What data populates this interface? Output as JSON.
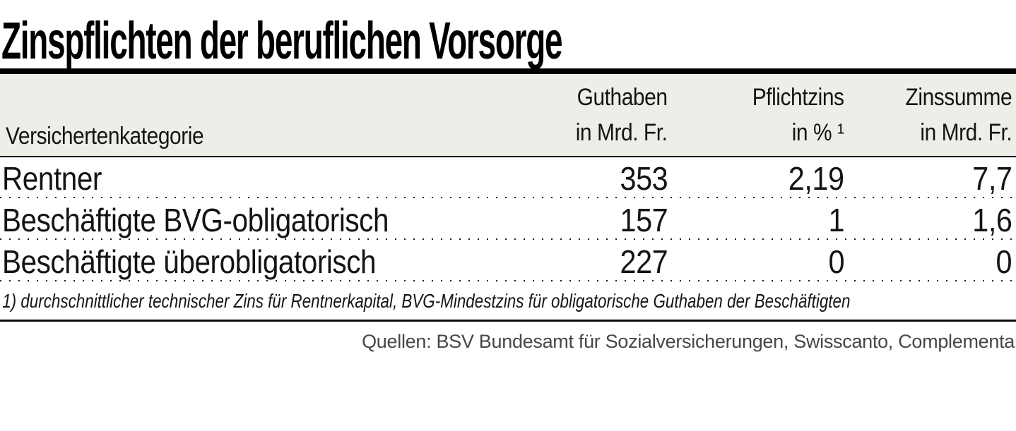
{
  "title": "Zinspflichten der beruflichen Vorsorge",
  "table": {
    "header": {
      "category_label": "Versichertenkategorie",
      "col_guthaben_line1": "Guthaben",
      "col_guthaben_line2": "in Mrd. Fr.",
      "col_pflichtzins_line1": "Pflichtzins",
      "col_pflichtzins_line2": "in % ¹",
      "col_zinssumme_line1": "Zinssumme",
      "col_zinssumme_line2": "in Mrd. Fr."
    },
    "rows": [
      {
        "category": "Rentner",
        "guthaben": "353",
        "pflichtzins": "2,19",
        "zinssumme": "7,7"
      },
      {
        "category": "Beschäftigte BVG-obligatorisch",
        "guthaben": "157",
        "pflichtzins": "1",
        "zinssumme": "1,6"
      },
      {
        "category": "Beschäftigte überobligatorisch",
        "guthaben": "227",
        "pflichtzins": "0",
        "zinssumme": "0"
      }
    ]
  },
  "footnote": "1) durchschnittlicher technischer Zins für Rentnerkapital, BVG-Mindestzins für obligatorische Guthaben der Beschäftigten",
  "source": "Quellen: BSV Bundesamt für Sozialversicherungen, Swisscanto, Complementa",
  "colors": {
    "header_band": "#eeede7",
    "rule": "#000000",
    "text": "#141414",
    "source_text": "#474747"
  },
  "chart_data": {
    "type": "table",
    "title": "Zinspflichten der beruflichen Vorsorge",
    "columns": [
      "Versichertenkategorie",
      "Guthaben in Mrd. Fr.",
      "Pflichtzins in % ¹",
      "Zinssumme in Mrd. Fr."
    ],
    "rows": [
      [
        "Rentner",
        353,
        2.19,
        7.7
      ],
      [
        "Beschäftigte BVG-obligatorisch",
        157,
        1,
        1.6
      ],
      [
        "Beschäftigte überobligatorisch",
        227,
        0,
        0
      ]
    ],
    "footnote": "1) durchschnittlicher technischer Zins für Rentnerkapital, BVG-Mindestzins für obligatorische Guthaben der Beschäftigten",
    "source": "Quellen: BSV Bundesamt für Sozialversicherungen, Swisscanto, Complementa",
    "legend_position": "none",
    "grid": "dotted-row-separators"
  }
}
